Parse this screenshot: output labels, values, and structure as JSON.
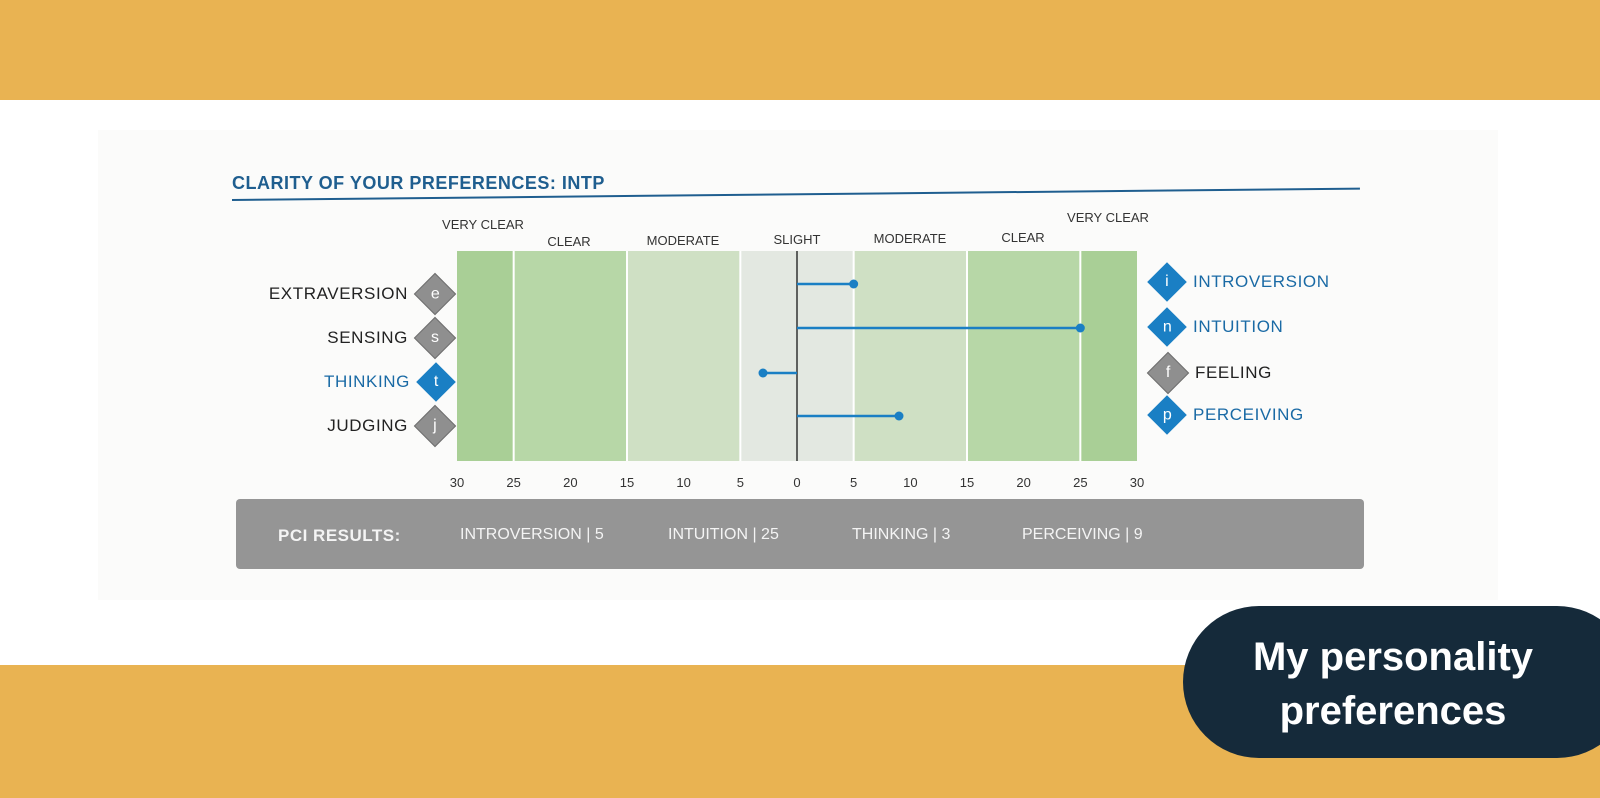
{
  "chart_data": {
    "type": "bar",
    "title": "CLARITY OF YOUR PREFERENCES: INTP",
    "x_range": [
      -30,
      30
    ],
    "x_ticks": [
      "30",
      "25",
      "20",
      "15",
      "10",
      "5",
      "0",
      "5",
      "10",
      "15",
      "20",
      "25",
      "30"
    ],
    "band_labels": [
      "VERY CLEAR",
      "CLEAR",
      "MODERATE",
      "SLIGHT",
      "MODERATE",
      "CLEAR",
      "VERY CLEAR"
    ],
    "rows": [
      {
        "left_letter": "e",
        "left_label": "EXTRAVERSION",
        "right_letter": "i",
        "right_label": "INTROVERSION",
        "preferred": "right",
        "value": 5
      },
      {
        "left_letter": "s",
        "left_label": "SENSING",
        "right_letter": "n",
        "right_label": "INTUITION",
        "preferred": "right",
        "value": 25
      },
      {
        "left_letter": "t",
        "left_label": "THINKING",
        "right_letter": "f",
        "right_label": "FEELING",
        "preferred": "left",
        "value": 3
      },
      {
        "left_letter": "j",
        "left_label": "JUDGING",
        "right_letter": "p",
        "right_label": "PERCEIVING",
        "preferred": "right",
        "value": 9
      }
    ]
  },
  "results": {
    "label": "PCI RESULTS:",
    "items": [
      {
        "name": "INTROVERSION",
        "value": "5"
      },
      {
        "name": "INTUITION",
        "value": "25"
      },
      {
        "name": "THINKING",
        "value": "3"
      },
      {
        "name": "PERCEIVING",
        "value": "9"
      }
    ]
  },
  "callout": {
    "line1": "My personality",
    "line2": "preferences"
  },
  "colors": {
    "accent_orange": "#e9b352",
    "navy": "#152a3a",
    "title_blue": "#1f5e8f",
    "marker_blue": "#1a7fc4",
    "band_green": "#b3d4a2",
    "band_light": "#e3e8e1",
    "results_gray": "#959595"
  }
}
